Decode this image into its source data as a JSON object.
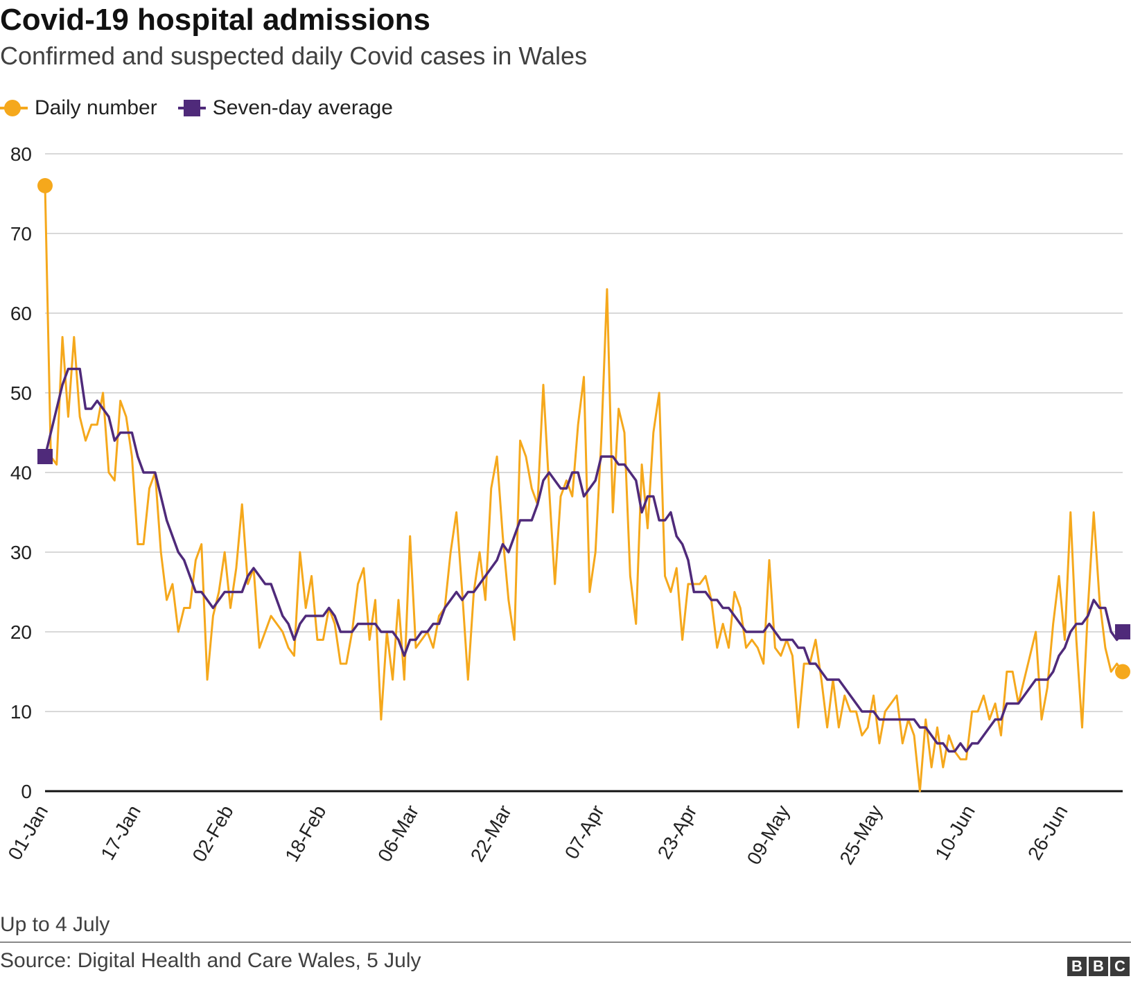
{
  "header": {
    "title": "Covid-19 hospital admissions",
    "subtitle": "Confirmed and suspected daily Covid cases in Wales"
  },
  "legend": [
    {
      "label": "Daily number",
      "color": "#f5a81c",
      "marker": "circle"
    },
    {
      "label": "Seven-day average",
      "color": "#4f2a7a",
      "marker": "square"
    }
  ],
  "chart_data": {
    "type": "line",
    "title": "Covid-19 hospital admissions",
    "subtitle": "Confirmed and suspected daily Covid cases in Wales",
    "xlabel": "",
    "ylabel": "",
    "ylim": [
      0,
      80
    ],
    "yticks": [
      0,
      10,
      20,
      30,
      40,
      50,
      60,
      70,
      80
    ],
    "x_start": "01-Jan",
    "x_end": "04-Jul",
    "xtick_labels": [
      "01-Jan",
      "17-Jan",
      "02-Feb",
      "18-Feb",
      "06-Mar",
      "22-Mar",
      "07-Apr",
      "23-Apr",
      "09-May",
      "25-May",
      "10-Jun",
      "26-Jun"
    ],
    "grid": true,
    "legend_position": "top-left",
    "series": [
      {
        "name": "Daily number",
        "color": "#f5a81c",
        "marker": "circle",
        "values": [
          76,
          42,
          41,
          57,
          47,
          57,
          47,
          44,
          46,
          46,
          50,
          40,
          39,
          49,
          47,
          42,
          31,
          31,
          38,
          40,
          30,
          24,
          26,
          20,
          23,
          23,
          29,
          31,
          14,
          22,
          25,
          30,
          23,
          28,
          36,
          26,
          28,
          18,
          20,
          22,
          21,
          20,
          18,
          17,
          30,
          23,
          27,
          19,
          19,
          23,
          21,
          16,
          16,
          20,
          26,
          28,
          19,
          24,
          9,
          20,
          14,
          24,
          14,
          32,
          18,
          19,
          20,
          18,
          22,
          23,
          30,
          35,
          25,
          14,
          25,
          30,
          24,
          38,
          42,
          32,
          24,
          19,
          44,
          42,
          38,
          36,
          51,
          38,
          26,
          37,
          39,
          37,
          46,
          52,
          25,
          30,
          44,
          63,
          35,
          48,
          45,
          27,
          21,
          41,
          33,
          45,
          50,
          27,
          25,
          28,
          19,
          26,
          26,
          26,
          27,
          24,
          18,
          21,
          18,
          25,
          23,
          18,
          19,
          18,
          16,
          29,
          18,
          17,
          19,
          17,
          8,
          16,
          16,
          19,
          14,
          8,
          14,
          8,
          12,
          10,
          10,
          7,
          8,
          12,
          6,
          10,
          11,
          12,
          6,
          9,
          7,
          0,
          9,
          3,
          8,
          3,
          7,
          5,
          4,
          4,
          10,
          10,
          12,
          9,
          11,
          7,
          15,
          15,
          11,
          14,
          17,
          20,
          9,
          13,
          21,
          27,
          19,
          35,
          19,
          8,
          23,
          35,
          24,
          18,
          15,
          16,
          15
        ]
      },
      {
        "name": "Seven-day average",
        "color": "#4f2a7a",
        "marker": "square",
        "values": [
          42,
          45,
          48,
          51,
          53,
          53,
          53,
          48,
          48,
          49,
          48,
          47,
          44,
          45,
          45,
          45,
          42,
          40,
          40,
          40,
          37,
          34,
          32,
          30,
          29,
          27,
          25,
          25,
          24,
          23,
          24,
          25,
          25,
          25,
          25,
          27,
          28,
          27,
          26,
          26,
          24,
          22,
          21,
          19,
          21,
          22,
          22,
          22,
          22,
          23,
          22,
          20,
          20,
          20,
          21,
          21,
          21,
          21,
          20,
          20,
          20,
          19,
          17,
          19,
          19,
          20,
          20,
          21,
          21,
          23,
          24,
          25,
          24,
          25,
          25,
          26,
          27,
          28,
          29,
          31,
          30,
          32,
          34,
          34,
          34,
          36,
          39,
          40,
          39,
          38,
          38,
          40,
          40,
          37,
          38,
          39,
          42,
          42,
          42,
          41,
          41,
          40,
          39,
          35,
          37,
          37,
          34,
          34,
          35,
          32,
          31,
          29,
          25,
          25,
          25,
          24,
          24,
          23,
          23,
          22,
          21,
          20,
          20,
          20,
          20,
          21,
          20,
          19,
          19,
          19,
          18,
          18,
          16,
          16,
          15,
          14,
          14,
          14,
          13,
          12,
          11,
          10,
          10,
          10,
          9,
          9,
          9,
          9,
          9,
          9,
          9,
          8,
          8,
          7,
          6,
          6,
          5,
          5,
          6,
          5,
          6,
          6,
          7,
          8,
          9,
          9,
          11,
          11,
          11,
          12,
          13,
          14,
          14,
          14,
          15,
          17,
          18,
          20,
          21,
          21,
          22,
          24,
          23,
          23,
          20,
          19,
          20
        ]
      }
    ]
  },
  "footer": {
    "note": "Up to 4 July",
    "source": "Source: Digital Health and Care Wales, 5 July",
    "logo": [
      "B",
      "B",
      "C"
    ]
  }
}
